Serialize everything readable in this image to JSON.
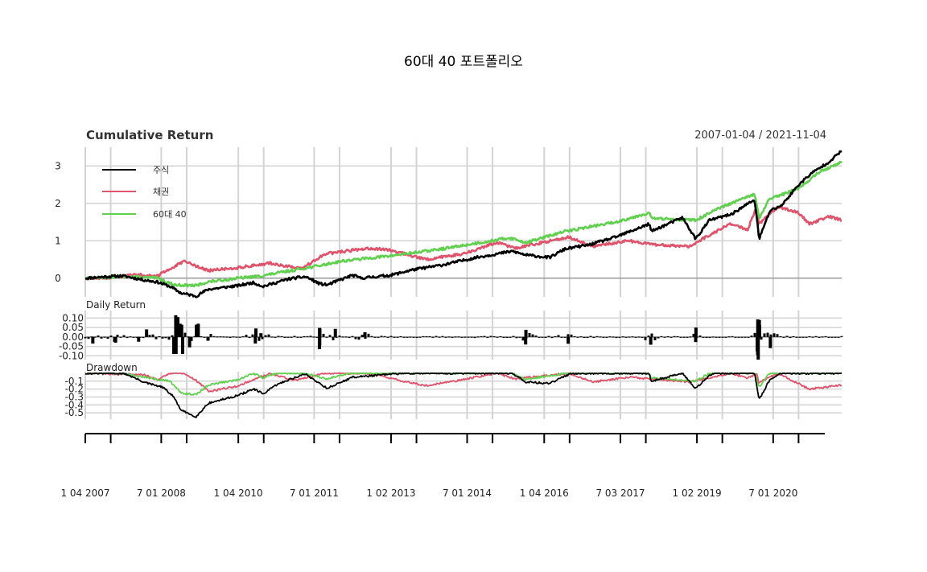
{
  "chart_data": {
    "type": "line",
    "title": "60대 40 포트폴리오",
    "date_range": "2007-01-04 / 2021-11-04",
    "x_range": [
      "2007-01-04",
      "2021-11-04"
    ],
    "date_labels": [
      "1 04 2007",
      "7 01 2008",
      "1 04 2010",
      "7 01 2011",
      "1 02 2013",
      "7 01 2014",
      "1 04 2016",
      "7 03 2017",
      "1 02 2019",
      "7 01 2020"
    ],
    "colors": {
      "주식": "#000000",
      "채권": "#df536b",
      "60대 40": "#61d04f"
    },
    "panels": [
      {
        "name": "Cumulative Return",
        "ylim": [
          -0.5,
          3.5
        ],
        "yticks": [
          "0",
          "1",
          "2",
          "3"
        ],
        "legend_position": "top-left",
        "series": [
          {
            "name": "주식",
            "x": [
              "2007-01-04",
              "2007-06-01",
              "2007-10-01",
              "2008-03-01",
              "2008-06-01",
              "2008-09-01",
              "2008-11-20",
              "2009-03-09",
              "2009-06-01",
              "2010-01-01",
              "2010-04-20",
              "2010-07-01",
              "2011-01-01",
              "2011-05-01",
              "2011-08-10",
              "2011-10-03",
              "2012-04-01",
              "2012-06-01",
              "2013-01-01",
              "2013-06-01",
              "2014-01-01",
              "2014-09-01",
              "2015-05-20",
              "2015-08-25",
              "2016-02-11",
              "2016-06-01",
              "2016-12-01",
              "2017-06-01",
              "2018-01-26",
              "2018-02-08",
              "2018-09-20",
              "2018-12-24",
              "2019-04-01",
              "2019-09-01",
              "2020-02-19",
              "2020-03-23",
              "2020-06-08",
              "2020-09-01",
              "2020-12-31",
              "2021-04-01",
              "2021-08-01",
              "2021-11-04"
            ],
            "y": [
              0,
              0.04,
              0.06,
              -0.05,
              -0.1,
              -0.22,
              -0.4,
              -0.48,
              -0.3,
              -0.2,
              -0.12,
              -0.22,
              -0.02,
              0.04,
              -0.15,
              -0.18,
              0.08,
              0.0,
              0.08,
              0.22,
              0.35,
              0.55,
              0.72,
              0.62,
              0.55,
              0.78,
              0.9,
              1.1,
              1.45,
              1.25,
              1.62,
              1.05,
              1.55,
              1.7,
              2.1,
              1.05,
              1.8,
              1.95,
              2.5,
              2.8,
              3.1,
              3.4
            ]
          },
          {
            "name": "채권",
            "x": [
              "2007-01-04",
              "2007-06-01",
              "2008-01-01",
              "2008-06-01",
              "2008-09-01",
              "2008-12-15",
              "2009-06-01",
              "2010-01-01",
              "2010-08-20",
              "2011-04-01",
              "2011-09-20",
              "2012-07-20",
              "2013-01-01",
              "2013-06-01",
              "2013-09-05",
              "2014-06-01",
              "2015-01-30",
              "2015-06-10",
              "2016-06-30",
              "2016-12-15",
              "2017-09-01",
              "2018-02-20",
              "2018-11-08",
              "2019-08-28",
              "2019-12-31",
              "2020-03-09",
              "2020-03-19",
              "2020-08-04",
              "2021-01-01",
              "2021-03-18",
              "2021-08-04",
              "2021-11-04"
            ],
            "y": [
              0,
              0.0,
              0.1,
              0.05,
              0.25,
              0.45,
              0.2,
              0.28,
              0.4,
              0.25,
              0.65,
              0.8,
              0.75,
              0.6,
              0.5,
              0.65,
              0.95,
              0.8,
              1.1,
              0.85,
              1.0,
              0.9,
              0.85,
              1.45,
              1.3,
              1.95,
              1.45,
              1.9,
              1.75,
              1.45,
              1.65,
              1.55
            ]
          },
          {
            "name": "60대 40",
            "x": [
              "2007-01-04",
              "2007-06-01",
              "2007-10-01",
              "2008-06-01",
              "2008-10-01",
              "2009-03-09",
              "2009-06-01",
              "2010-01-01",
              "2010-06-01",
              "2011-04-01",
              "2011-09-01",
              "2012-01-01",
              "2013-01-01",
              "2014-01-01",
              "2015-05-01",
              "2015-08-25",
              "2016-06-01",
              "2017-06-01",
              "2018-01-26",
              "2018-02-08",
              "2018-12-24",
              "2019-06-01",
              "2020-02-19",
              "2020-03-23",
              "2020-06-01",
              "2020-12-31",
              "2021-06-01",
              "2021-11-04"
            ],
            "y": [
              0,
              0.02,
              0.05,
              0.0,
              -0.18,
              -0.2,
              -0.1,
              0.0,
              0.05,
              0.25,
              0.35,
              0.45,
              0.6,
              0.78,
              1.08,
              0.95,
              1.25,
              1.5,
              1.75,
              1.6,
              1.55,
              1.85,
              2.25,
              1.6,
              2.1,
              2.4,
              2.85,
              3.1
            ]
          }
        ]
      },
      {
        "name": "Daily Return",
        "ylim": [
          -0.12,
          0.14
        ],
        "yticks": [
          "0.10",
          "0.05",
          "0.00",
          "-0.05",
          "-0.10"
        ],
        "series": [
          {
            "name": "주식",
            "x": [
              "2007-02-27",
              "2007-08-09",
              "2008-01-21",
              "2008-03-18",
              "2008-09-29",
              "2008-10-13",
              "2008-10-15",
              "2008-10-28",
              "2008-11-13",
              "2008-11-24",
              "2008-12-01",
              "2009-01-20",
              "2009-03-10",
              "2009-03-23",
              "2009-06-01",
              "2010-05-06",
              "2010-05-10",
              "2010-06-15",
              "2011-08-08",
              "2011-08-09",
              "2011-08-10",
              "2011-08-11",
              "2011-11-30",
              "2012-06-29",
              "2015-08-24",
              "2015-08-26",
              "2016-06-24",
              "2018-02-05",
              "2018-12-24",
              "2018-12-26",
              "2020-03-09",
              "2020-03-12",
              "2020-03-13",
              "2020-03-16",
              "2020-03-24",
              "2020-03-26",
              "2020-06-11"
            ],
            "y": [
              -0.035,
              -0.03,
              -0.025,
              0.04,
              -0.09,
              0.115,
              -0.09,
              0.105,
              0.07,
              0.065,
              -0.09,
              -0.055,
              0.065,
              0.07,
              -0.02,
              -0.035,
              0.045,
              0.02,
              -0.065,
              0.048,
              -0.045,
              0.045,
              0.043,
              0.025,
              -0.04,
              0.038,
              -0.036,
              -0.041,
              -0.027,
              0.05,
              -0.076,
              -0.095,
              0.093,
              -0.12,
              0.09,
              0.062,
              -0.059
            ]
          }
        ]
      },
      {
        "name": "Drawdown",
        "ylim": [
          -0.58,
          0.02
        ],
        "yticks": [
          "-0.1",
          "-0.2",
          "-0.3",
          "-0.4",
          "-0.5"
        ],
        "series": [
          {
            "name": "주식",
            "x": [
              "2007-01-04",
              "2007-10-09",
              "2008-03-10",
              "2008-07-15",
              "2008-09-29",
              "2008-11-20",
              "2009-03-09",
              "2009-06-01",
              "2010-01-01",
              "2010-04-23",
              "2010-07-02",
              "2010-10-01",
              "2011-01-01",
              "2011-04-29",
              "2011-10-03",
              "2012-04-01",
              "2013-03-28",
              "2015-05-21",
              "2015-08-25",
              "2016-02-11",
              "2016-07-15",
              "2018-01-26",
              "2018-02-08",
              "2018-09-20",
              "2018-12-24",
              "2019-04-23",
              "2020-02-19",
              "2020-03-23",
              "2020-06-08",
              "2020-08-18",
              "2021-11-04"
            ],
            "y": [
              0,
              0,
              -0.12,
              -0.18,
              -0.3,
              -0.47,
              -0.55,
              -0.38,
              -0.28,
              -0.2,
              -0.26,
              -0.15,
              -0.08,
              -0.01,
              -0.19,
              -0.05,
              0,
              0,
              -0.11,
              -0.13,
              0,
              0,
              -0.1,
              0,
              -0.19,
              0,
              0,
              -0.33,
              -0.08,
              0,
              0
            ]
          },
          {
            "name": "채권",
            "x": [
              "2007-01-04",
              "2008-03-01",
              "2008-06-01",
              "2008-09-01",
              "2008-12-15",
              "2009-03-15",
              "2009-06-10",
              "2010-01-01",
              "2010-08-20",
              "2011-02-01",
              "2011-09-20",
              "2012-07-20",
              "2013-09-05",
              "2014-06-01",
              "2015-01-30",
              "2015-06-10",
              "2016-06-30",
              "2016-12-15",
              "2017-09-01",
              "2018-11-08",
              "2019-08-28",
              "2019-12-31",
              "2020-03-09",
              "2020-03-19",
              "2020-08-04",
              "2021-03-18",
              "2021-11-04"
            ],
            "y": [
              0,
              -0.02,
              -0.08,
              0,
              0,
              -0.1,
              -0.23,
              -0.16,
              0,
              -0.09,
              0,
              0,
              -0.16,
              -0.08,
              0,
              -0.07,
              0,
              -0.11,
              -0.05,
              -0.11,
              0,
              -0.06,
              0,
              -0.12,
              0,
              -0.2,
              -0.15
            ]
          },
          {
            "name": "60대 40",
            "x": [
              "2007-01-04",
              "2007-10-09",
              "2008-03-10",
              "2008-09-01",
              "2008-11-20",
              "2009-03-09",
              "2009-06-01",
              "2010-01-01",
              "2010-04-23",
              "2010-07-02",
              "2010-10-01",
              "2011-04-29",
              "2011-10-03",
              "2012-03-01",
              "2015-05-21",
              "2015-08-25",
              "2016-06-01",
              "2018-01-26",
              "2018-02-08",
              "2018-12-24",
              "2019-04-01",
              "2020-02-19",
              "2020-03-23",
              "2020-06-01",
              "2021-11-04"
            ],
            "y": [
              0,
              0,
              -0.05,
              -0.1,
              -0.25,
              -0.27,
              -0.15,
              -0.08,
              0,
              -0.06,
              0,
              0,
              -0.07,
              0,
              0,
              -0.08,
              0,
              0,
              -0.06,
              -0.1,
              0,
              0,
              -0.18,
              0,
              0
            ]
          }
        ]
      }
    ]
  }
}
